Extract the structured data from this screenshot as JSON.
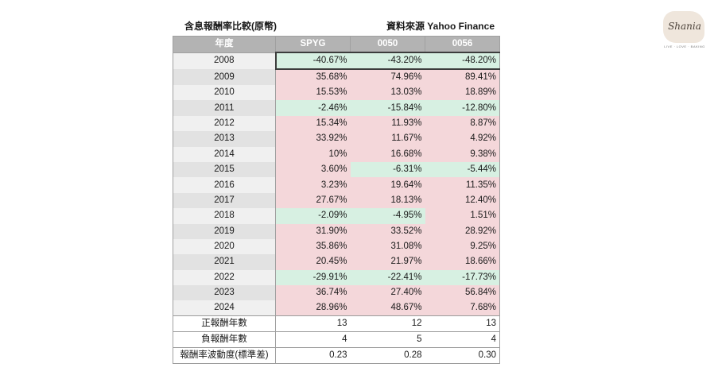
{
  "caption_left": "含息報酬率比較(原幣)",
  "caption_right": "資料來源 Yahoo Finance",
  "header": {
    "year": "年度",
    "c1": "SPYG",
    "c2": "0050",
    "c3": "0056"
  },
  "rows": [
    {
      "year": "2008",
      "v": [
        "-40.67%",
        "-43.20%",
        "-48.20%"
      ],
      "s": [
        "neg",
        "neg",
        "neg"
      ]
    },
    {
      "year": "2009",
      "v": [
        "35.68%",
        "74.96%",
        "89.41%"
      ],
      "s": [
        "pos",
        "pos",
        "pos"
      ]
    },
    {
      "year": "2010",
      "v": [
        "15.53%",
        "13.03%",
        "18.89%"
      ],
      "s": [
        "pos",
        "pos",
        "pos"
      ]
    },
    {
      "year": "2011",
      "v": [
        "-2.46%",
        "-15.84%",
        "-12.80%"
      ],
      "s": [
        "neg",
        "neg",
        "neg"
      ]
    },
    {
      "year": "2012",
      "v": [
        "15.34%",
        "11.93%",
        "8.87%"
      ],
      "s": [
        "pos",
        "pos",
        "pos"
      ]
    },
    {
      "year": "2013",
      "v": [
        "33.92%",
        "11.67%",
        "4.92%"
      ],
      "s": [
        "pos",
        "pos",
        "pos"
      ]
    },
    {
      "year": "2014",
      "v": [
        "10%",
        "16.68%",
        "9.38%"
      ],
      "s": [
        "pos",
        "pos",
        "pos"
      ]
    },
    {
      "year": "2015",
      "v": [
        "3.60%",
        "-6.31%",
        "-5.44%"
      ],
      "s": [
        "pos",
        "neg",
        "neg"
      ]
    },
    {
      "year": "2016",
      "v": [
        "3.23%",
        "19.64%",
        "11.35%"
      ],
      "s": [
        "pos",
        "pos",
        "pos"
      ]
    },
    {
      "year": "2017",
      "v": [
        "27.67%",
        "18.13%",
        "12.40%"
      ],
      "s": [
        "pos",
        "pos",
        "pos"
      ]
    },
    {
      "year": "2018",
      "v": [
        "-2.09%",
        "-4.95%",
        "1.51%"
      ],
      "s": [
        "neg",
        "neg",
        "pos"
      ]
    },
    {
      "year": "2019",
      "v": [
        "31.90%",
        "33.52%",
        "28.92%"
      ],
      "s": [
        "pos",
        "pos",
        "pos"
      ]
    },
    {
      "year": "2020",
      "v": [
        "35.86%",
        "31.08%",
        "9.25%"
      ],
      "s": [
        "pos",
        "pos",
        "pos"
      ]
    },
    {
      "year": "2021",
      "v": [
        "20.45%",
        "21.97%",
        "18.66%"
      ],
      "s": [
        "pos",
        "pos",
        "pos"
      ]
    },
    {
      "year": "2022",
      "v": [
        "-29.91%",
        "-22.41%",
        "-17.73%"
      ],
      "s": [
        "neg",
        "neg",
        "neg"
      ]
    },
    {
      "year": "2023",
      "v": [
        "36.74%",
        "27.40%",
        "56.84%"
      ],
      "s": [
        "pos",
        "pos",
        "pos"
      ]
    },
    {
      "year": "2024",
      "v": [
        "28.96%",
        "48.67%",
        "7.68%"
      ],
      "s": [
        "pos",
        "pos",
        "pos"
      ]
    }
  ],
  "summary": [
    {
      "label": "正報酬年數",
      "v": [
        "13",
        "12",
        "13"
      ]
    },
    {
      "label": "負報酬年數",
      "v": [
        "4",
        "5",
        "4"
      ]
    },
    {
      "label": "報酬率波動度(標準差)",
      "v": [
        "0.23",
        "0.28",
        "0.30"
      ]
    }
  ],
  "logo": {
    "word": "Shania",
    "tagline": "LIVE · LOVE · BAKING"
  },
  "colors": {
    "header_bg": "#b3b3b3",
    "positive_bg": "#f4d7da",
    "negative_bg": "#d7f0e2"
  }
}
